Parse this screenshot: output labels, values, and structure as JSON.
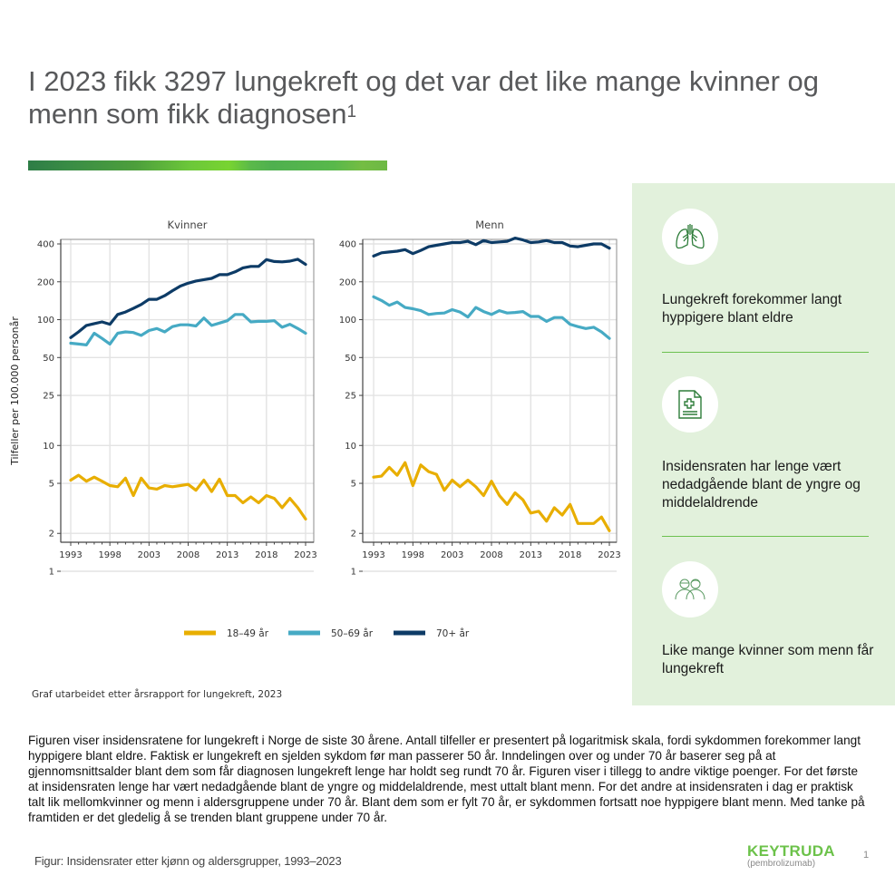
{
  "slide": {
    "title_main": "I 2023 fikk 3297 lungekreft og det var det like mange kvinner og menn som fikk diagnosen",
    "title_sup": "1",
    "source_note": "Graf utarbeidet etter årsrapport for lungekreft, 2023",
    "body_text": "Figuren viser insidensratene for lungekreft i Norge de siste 30 årene. Antall tilfeller er presentert på logaritmisk skala, fordi sykdommen forekommer langt hyppigere blant eldre. Faktisk er lungekreft en sjelden sykdom før man passerer 50 år. Inndelingen over og under 70 år baserer seg på at gjennomsnittsalder blant dem som får diagnosen lungekreft lenge har holdt seg rundt 70 år. Figuren viser i tillegg to andre viktige poenger. For det første at insidensraten lenge har vært nedadgående blant de yngre og middelaldrende, mest uttalt blant menn. For det andre at insidensraten i dag er praktisk talt lik mellomkvinner og menn i aldersgruppene under 70 år. Blant dem som er fylt 70 år, er sykdommen fortsatt noe hyppigere blant menn. Med tanke på framtiden er det gledelig å se trenden blant gruppene under 70 år.",
    "figure_caption": "Figur: Insidensrater etter kjønn og aldersgrupper, 1993–2023",
    "page_number": "1",
    "brand": {
      "name": "KEYTRUDA",
      "sub": "(pembrolizumab)",
      "color": "#6cc24a"
    }
  },
  "panel": {
    "items": [
      {
        "icon": "lungs-icon",
        "text": "Lungekreft forekommer langt hyppigere blant eldre"
      },
      {
        "icon": "medical-document-icon",
        "text": "Insidensraten har lenge vært nedadgående blant de yngre og middelaldrende"
      },
      {
        "icon": "two-people-icon",
        "text": "Like mange kvinner som menn får lungekreft"
      }
    ]
  },
  "chart_data": [
    {
      "type": "line",
      "title": "Kvinner",
      "ylabel": "Tilfeller per 100.000 personår",
      "xlabel": "",
      "yscale": "log",
      "ylim": [
        0.9,
        450
      ],
      "yticks": [
        1,
        2,
        5,
        10,
        25,
        50,
        100,
        200,
        400
      ],
      "xlim": [
        1993,
        2023
      ],
      "xticks": [
        1993,
        1998,
        2003,
        2008,
        2013,
        2018,
        2023
      ],
      "grid": true,
      "x": [
        1993,
        1994,
        1995,
        1996,
        1997,
        1998,
        1999,
        2000,
        2001,
        2002,
        2003,
        2004,
        2005,
        2006,
        2007,
        2008,
        2009,
        2010,
        2011,
        2012,
        2013,
        2014,
        2015,
        2016,
        2017,
        2018,
        2019,
        2020,
        2021,
        2022,
        2023
      ],
      "series": [
        {
          "name": "18–49 år",
          "color": "#e8ae00",
          "values": [
            5.3,
            5.8,
            5.2,
            5.6,
            5.2,
            4.8,
            4.7,
            5.5,
            4.0,
            5.5,
            4.6,
            4.5,
            4.8,
            4.7,
            4.8,
            4.9,
            4.4,
            5.3,
            4.3,
            5.4,
            4.0,
            4.0,
            3.5,
            3.9,
            3.5,
            4.0,
            3.8,
            3.2,
            3.8,
            3.2,
            2.6
          ]
        },
        {
          "name": "50–69 år",
          "color": "#46aac4",
          "values": [
            65,
            64,
            63,
            78,
            71,
            64,
            78,
            80,
            79,
            75,
            82,
            85,
            80,
            88,
            91,
            91,
            89,
            103,
            90,
            94,
            98,
            110,
            110,
            96,
            97,
            97,
            98,
            87,
            92,
            85,
            78
          ]
        },
        {
          "name": "70+ år",
          "color": "#0d3b66",
          "values": [
            72,
            80,
            90,
            93,
            96,
            92,
            110,
            115,
            123,
            132,
            145,
            145,
            155,
            170,
            185,
            195,
            203,
            208,
            213,
            228,
            228,
            240,
            258,
            265,
            265,
            300,
            290,
            288,
            292,
            302,
            275
          ]
        }
      ]
    },
    {
      "type": "line",
      "title": "Menn",
      "ylabel": "",
      "xlabel": "",
      "yscale": "log",
      "ylim": [
        0.9,
        450
      ],
      "yticks": [
        1,
        2,
        5,
        10,
        25,
        50,
        100,
        200,
        400
      ],
      "xlim": [
        1993,
        2023
      ],
      "xticks": [
        1993,
        1998,
        2003,
        2008,
        2013,
        2018,
        2023
      ],
      "grid": true,
      "x": [
        1993,
        1994,
        1995,
        1996,
        1997,
        1998,
        1999,
        2000,
        2001,
        2002,
        2003,
        2004,
        2005,
        2006,
        2007,
        2008,
        2009,
        2010,
        2011,
        2012,
        2013,
        2014,
        2015,
        2016,
        2017,
        2018,
        2019,
        2020,
        2021,
        2022,
        2023
      ],
      "series": [
        {
          "name": "18–49 år",
          "color": "#e8ae00",
          "values": [
            5.6,
            5.7,
            6.7,
            5.8,
            7.3,
            4.8,
            7.0,
            6.2,
            5.9,
            4.4,
            5.3,
            4.7,
            5.3,
            4.7,
            4.0,
            5.2,
            4.0,
            3.4,
            4.2,
            3.7,
            2.9,
            3.0,
            2.5,
            3.2,
            2.8,
            3.4,
            2.4,
            2.4,
            2.4,
            2.7,
            2.1
          ]
        },
        {
          "name": "50–69 år",
          "color": "#46aac4",
          "values": [
            152,
            142,
            130,
            138,
            125,
            122,
            118,
            110,
            112,
            113,
            120,
            115,
            105,
            125,
            116,
            110,
            118,
            113,
            114,
            116,
            106,
            106,
            97,
            104,
            104,
            92,
            88,
            85,
            87,
            80,
            71
          ]
        },
        {
          "name": "70+ år",
          "color": "#0d3b66",
          "values": [
            320,
            340,
            345,
            350,
            360,
            335,
            355,
            380,
            390,
            400,
            410,
            410,
            420,
            395,
            425,
            410,
            415,
            420,
            445,
            430,
            410,
            415,
            425,
            410,
            410,
            385,
            380,
            390,
            400,
            400,
            370
          ]
        }
      ]
    }
  ],
  "legend": [
    {
      "label": "18–49 år",
      "color": "#e8ae00"
    },
    {
      "label": "50–69 år",
      "color": "#46aac4"
    },
    {
      "label": "70+ år",
      "color": "#0d3b66"
    }
  ]
}
